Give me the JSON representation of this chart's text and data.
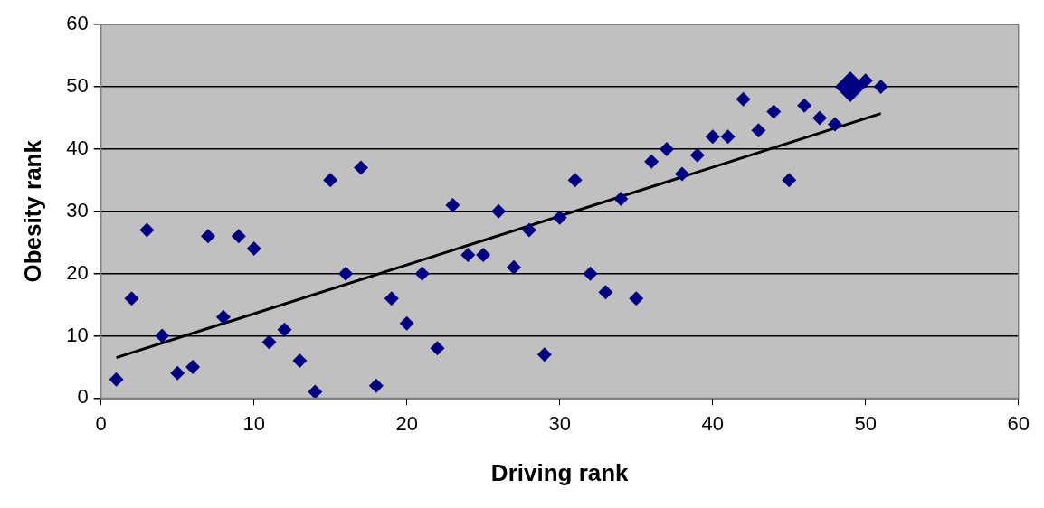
{
  "chart_data": {
    "type": "scatter",
    "xlabel": "Driving rank",
    "ylabel": "Obesity rank",
    "xlim": [
      0,
      60
    ],
    "xticks": [
      0,
      10,
      20,
      30,
      40,
      50,
      60
    ],
    "ylim": [
      0,
      60
    ],
    "yticks": [
      0,
      10,
      20,
      30,
      40,
      50,
      60
    ],
    "grid": "y",
    "legend": false,
    "marker": "diamond",
    "series": [
      {
        "color": "#000080",
        "x": [
          1,
          2,
          3,
          4,
          5,
          6,
          7,
          8,
          9,
          10,
          11,
          12,
          13,
          14,
          15,
          16,
          17,
          18,
          19,
          20,
          21,
          22,
          23,
          24,
          25,
          26,
          27,
          28,
          29,
          30,
          31,
          32,
          33,
          34,
          35,
          36,
          37,
          38,
          39,
          40,
          41,
          42,
          43,
          44,
          45,
          46,
          47,
          48,
          50,
          51
        ],
        "values": [
          3,
          16,
          27,
          10,
          4,
          5,
          26,
          13,
          26,
          24,
          9,
          11,
          6,
          1,
          35,
          20,
          37,
          2,
          16,
          12,
          20,
          8,
          31,
          23,
          23,
          30,
          21,
          27,
          7,
          29,
          35,
          20,
          17,
          32,
          16,
          38,
          40,
          36,
          39,
          42,
          42,
          48,
          43,
          46,
          35,
          47,
          45,
          44,
          51,
          50
        ]
      },
      {
        "color": "#000080",
        "x": [
          49
        ],
        "values": [
          50
        ]
      },
      {
        "type": "line",
        "color": "#000000",
        "x": [
          1,
          51
        ],
        "values": [
          6.5,
          45.7
        ],
        "marker": "none"
      }
    ]
  }
}
